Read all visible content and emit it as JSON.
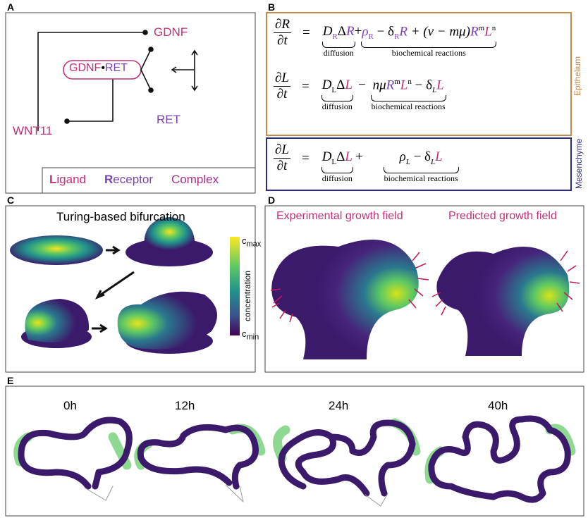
{
  "panels": {
    "A": {
      "label": "A",
      "ligand": "GDNF",
      "complex_ligand": "GDNF",
      "complex_dot": "•",
      "complex_receptor": "RET",
      "receptor": "RET",
      "inducer": "WNT11",
      "legend": [
        {
          "initial": "L",
          "rest": "igand"
        },
        {
          "initial": "R",
          "rest": "eceptor"
        },
        {
          "initial": "",
          "rest": "Complex"
        }
      ]
    },
    "B": {
      "label": "B",
      "region_labels": [
        "Epithelium",
        "Mesenchyme"
      ],
      "equations": [
        {
          "num": "∂R",
          "den": "∂t",
          "eq": "=",
          "diff": [
            "D",
            "R",
            "Δ",
            "R"
          ],
          "sign": "+",
          "react": [
            "ρ",
            "R",
            " − δ",
            "R",
            "R",
            " + (v − mμ)",
            "R",
            "m",
            "L",
            "n"
          ],
          "diff_label": "diffusion",
          "react_label": "biochemical reactions"
        },
        {
          "num": "∂L",
          "den": "∂t",
          "eq": "=",
          "diff": [
            "D",
            "L",
            "Δ",
            "L"
          ],
          "sign": "−",
          "react": [
            "nμ",
            "R",
            "m",
            "L",
            "n",
            " − δ",
            "L",
            "L"
          ],
          "diff_label": "diffusion",
          "react_label": "biochemical reactions"
        },
        {
          "num": "∂L",
          "den": "∂t",
          "eq": "=",
          "diff": [
            "D",
            "L",
            "Δ",
            "L"
          ],
          "sign": "+",
          "react": [
            "ρ",
            "L",
            " − δ",
            "L",
            "L"
          ],
          "diff_label": "diffusion",
          "react_label": "biochemical reactions"
        }
      ]
    },
    "C": {
      "label": "C",
      "title": "Turing-based bifurcation",
      "colorbar_max": [
        "c",
        "max"
      ],
      "colorbar_title": "concentration",
      "colorbar_min": [
        "c",
        "min"
      ]
    },
    "D": {
      "label": "D",
      "titles": [
        "Experimental growth field",
        "Predicted growth field"
      ]
    },
    "E": {
      "label": "E",
      "times": [
        "0h",
        "12h",
        "24h",
        "40h"
      ]
    }
  }
}
